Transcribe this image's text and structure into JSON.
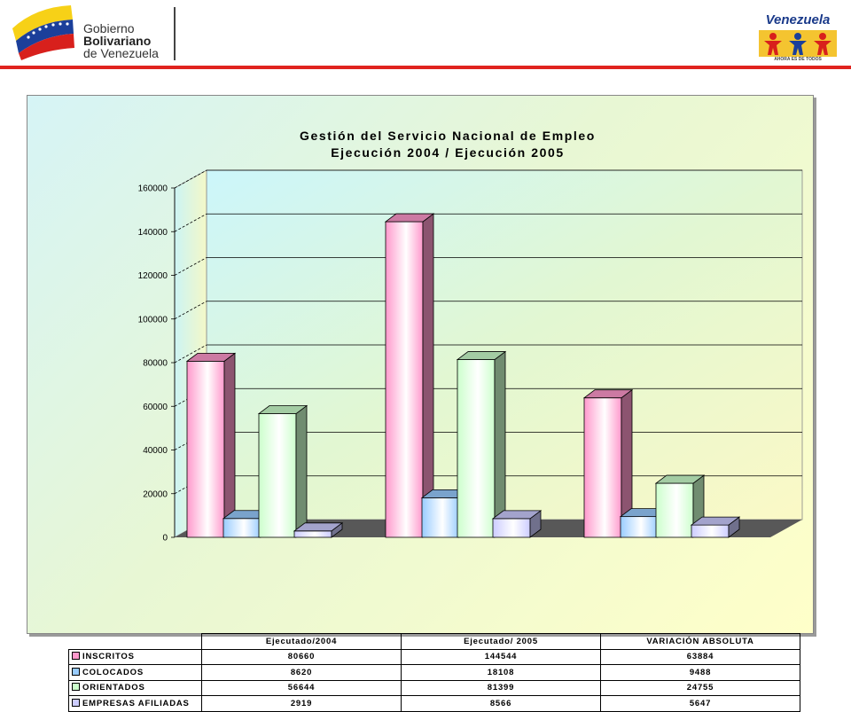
{
  "header": {
    "gov_line1": "Gobierno",
    "gov_line2": "Bolivariano",
    "gov_line3": "de Venezuela",
    "ven_title": "Venezuela",
    "ven_motto": "AHORA ES DE TODOS",
    "accent_red": "#e0231e"
  },
  "chart_data": {
    "type": "bar",
    "title_line1": "Gestión del Servicio Nacional de Empleo",
    "title_line2": "Ejecución 2004 / Ejecución 2005",
    "categories": [
      "Ejecutado/2004",
      "Ejecutado/ 2005",
      "VARIACIÓN ABSOLUTA"
    ],
    "series": [
      {
        "name": "INSCRITOS",
        "values": [
          80660,
          144544,
          63884
        ],
        "color": "#ff99cc"
      },
      {
        "name": "COLOCADOS",
        "values": [
          8620,
          18108,
          9488
        ],
        "color": "#99ccff"
      },
      {
        "name": "ORIENTADOS",
        "values": [
          56644,
          81399,
          24755
        ],
        "color": "#ccffcc"
      },
      {
        "name": "EMPRESAS AFILIADAS",
        "values": [
          2919,
          8566,
          5647
        ],
        "color": "#ccccff"
      }
    ],
    "table_display": [
      [
        "80660",
        "144544",
        "63884"
      ],
      [
        "8620",
        "18108",
        "9488"
      ],
      [
        "56644",
        "81399",
        "24755"
      ],
      [
        "2919",
        "8566",
        "5647"
      ]
    ],
    "yticks": [
      "0",
      "20000",
      "40000",
      "60000",
      "80000",
      "100000",
      "120000",
      "140000",
      "160000"
    ],
    "ylim": [
      0,
      160000
    ],
    "grid": true,
    "legend": "data table"
  }
}
